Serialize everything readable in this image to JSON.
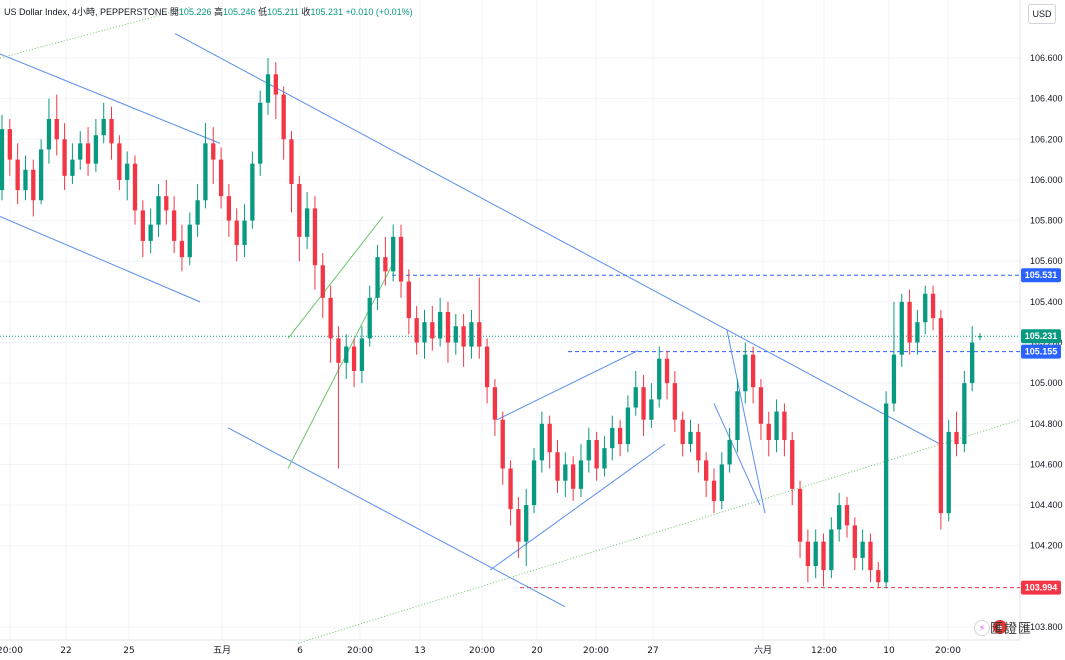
{
  "header": {
    "symbol": "US Dollar Index, 4小時, PEPPERSTONE",
    "open_label": "開",
    "open": "105.226",
    "high_label": "高",
    "high": "105.246",
    "low_label": "低",
    "low": "105.211",
    "close_label": "收",
    "close": "105.231",
    "change": "+0.010 (+0.01%)"
  },
  "currency_button": "USD",
  "watermark": "匯證匯",
  "colors": {
    "up": "#089981",
    "down": "#f23645",
    "trend_blue": "#5b8def",
    "trend_green": "#6cc46c",
    "grid": "#f0f3fa"
  },
  "chart_data": {
    "type": "candlestick",
    "y_axis": {
      "min": 103.8,
      "max": 106.8,
      "ticks": [
        "106.600",
        "106.400",
        "106.200",
        "106.000",
        "105.800",
        "105.600",
        "105.400",
        "105.200",
        "105.000",
        "104.800",
        "104.600",
        "104.400",
        "104.200",
        "103.800"
      ]
    },
    "x_axis": {
      "ticks": [
        "20:00",
        "22",
        "25",
        "五月",
        "6",
        "20:00",
        "13",
        "20:00",
        "20",
        "20:00",
        "27",
        "六月",
        "12:00",
        "10",
        "20:00"
      ]
    },
    "price_labels": [
      {
        "value": 105.531,
        "text": "105.531",
        "color": "#2962ff"
      },
      {
        "value": 105.231,
        "text": "105.231",
        "color": "#089981"
      },
      {
        "value": 105.155,
        "text": "105.155",
        "color": "#2962ff"
      },
      {
        "value": 103.994,
        "text": "103.994",
        "color": "#f23645"
      }
    ],
    "horizontal_lines": [
      {
        "value": 105.531,
        "style": "dashed",
        "color": "#2962ff"
      },
      {
        "value": 105.155,
        "style": "dashed",
        "color": "#2962ff"
      },
      {
        "value": 103.994,
        "style": "dashed",
        "color": "#f23645"
      },
      {
        "value": 105.231,
        "style": "dotted",
        "color": "#089981"
      }
    ],
    "candles": [
      [
        105.95,
        106.25,
        106.32,
        105.9
      ],
      [
        106.25,
        106.1,
        106.3,
        106.02
      ],
      [
        106.1,
        105.95,
        106.18,
        105.88
      ],
      [
        105.95,
        106.05,
        106.12,
        105.9
      ],
      [
        106.05,
        105.9,
        106.1,
        105.82
      ],
      [
        105.9,
        106.15,
        106.2,
        105.88
      ],
      [
        106.15,
        106.3,
        106.4,
        106.08
      ],
      [
        106.3,
        106.2,
        106.42,
        106.12
      ],
      [
        106.2,
        106.02,
        106.28,
        105.95
      ],
      [
        106.02,
        106.1,
        106.18,
        105.98
      ],
      [
        106.1,
        106.18,
        106.24,
        106.05
      ],
      [
        106.18,
        106.08,
        106.26,
        106.02
      ],
      [
        106.08,
        106.22,
        106.3,
        106.04
      ],
      [
        106.22,
        106.3,
        106.38,
        106.18
      ],
      [
        106.3,
        106.18,
        106.36,
        106.1
      ],
      [
        106.18,
        106.0,
        106.22,
        105.95
      ],
      [
        106.0,
        106.08,
        106.14,
        105.9
      ],
      [
        106.08,
        105.85,
        106.12,
        105.78
      ],
      [
        105.85,
        105.7,
        105.9,
        105.62
      ],
      [
        105.7,
        105.78,
        105.86,
        105.64
      ],
      [
        105.78,
        105.92,
        105.98,
        105.72
      ],
      [
        105.92,
        105.85,
        106.0,
        105.78
      ],
      [
        105.85,
        105.7,
        105.92,
        105.64
      ],
      [
        105.7,
        105.62,
        105.78,
        105.55
      ],
      [
        105.62,
        105.78,
        105.84,
        105.58
      ],
      [
        105.78,
        105.9,
        105.98,
        105.72
      ],
      [
        105.9,
        106.18,
        106.28,
        105.86
      ],
      [
        106.18,
        106.1,
        106.26,
        105.98
      ],
      [
        106.1,
        105.92,
        106.16,
        105.86
      ],
      [
        105.92,
        105.8,
        105.98,
        105.72
      ],
      [
        105.8,
        105.68,
        105.86,
        105.6
      ],
      [
        105.68,
        105.8,
        105.88,
        105.62
      ],
      [
        105.8,
        106.08,
        106.14,
        105.76
      ],
      [
        106.08,
        106.38,
        106.44,
        106.02
      ],
      [
        106.38,
        106.52,
        106.6,
        106.32
      ],
      [
        106.52,
        106.42,
        106.58,
        106.3
      ],
      [
        106.42,
        106.2,
        106.46,
        106.1
      ],
      [
        106.2,
        105.98,
        106.24,
        105.84
      ],
      [
        105.98,
        105.72,
        106.02,
        105.6
      ],
      [
        105.72,
        105.86,
        105.94,
        105.66
      ],
      [
        105.86,
        105.58,
        105.92,
        105.46
      ],
      [
        105.58,
        105.42,
        105.64,
        105.32
      ],
      [
        105.42,
        105.22,
        105.48,
        105.1
      ],
      [
        105.22,
        105.1,
        105.28,
        104.58
      ],
      [
        105.1,
        105.18,
        105.24,
        105.02
      ],
      [
        105.18,
        105.06,
        105.22,
        104.98
      ],
      [
        105.06,
        105.22,
        105.28,
        105.0
      ],
      [
        105.22,
        105.42,
        105.48,
        105.18
      ],
      [
        105.42,
        105.62,
        105.68,
        105.36
      ],
      [
        105.62,
        105.55,
        105.72,
        105.48
      ],
      [
        105.55,
        105.72,
        105.78,
        105.5
      ],
      [
        105.72,
        105.5,
        105.78,
        105.42
      ],
      [
        105.5,
        105.32,
        105.56,
        105.24
      ],
      [
        105.32,
        105.2,
        105.38,
        105.14
      ],
      [
        105.2,
        105.3,
        105.36,
        105.12
      ],
      [
        105.3,
        105.22,
        105.38,
        105.16
      ],
      [
        105.22,
        105.35,
        105.42,
        105.18
      ],
      [
        105.35,
        105.2,
        105.4,
        105.1
      ],
      [
        105.2,
        105.28,
        105.34,
        105.14
      ],
      [
        105.28,
        105.18,
        105.34,
        105.08
      ],
      [
        105.18,
        105.3,
        105.36,
        105.12
      ],
      [
        105.3,
        105.18,
        105.52,
        105.12
      ],
      [
        105.18,
        104.98,
        105.22,
        104.9
      ],
      [
        104.98,
        104.82,
        105.02,
        104.74
      ],
      [
        104.82,
        104.58,
        104.86,
        104.5
      ],
      [
        104.58,
        104.38,
        104.62,
        104.3
      ],
      [
        104.38,
        104.22,
        104.44,
        104.14
      ],
      [
        104.22,
        104.4,
        104.48,
        104.1
      ],
      [
        104.4,
        104.62,
        104.68,
        104.36
      ],
      [
        104.62,
        104.8,
        104.86,
        104.56
      ],
      [
        104.8,
        104.66,
        104.84,
        104.58
      ],
      [
        104.66,
        104.52,
        104.72,
        104.46
      ],
      [
        104.52,
        104.6,
        104.66,
        104.44
      ],
      [
        104.6,
        104.48,
        104.64,
        104.42
      ],
      [
        104.48,
        104.62,
        104.7,
        104.44
      ],
      [
        104.62,
        104.72,
        104.78,
        104.56
      ],
      [
        104.72,
        104.58,
        104.76,
        104.52
      ],
      [
        104.58,
        104.68,
        104.74,
        104.54
      ],
      [
        104.68,
        104.78,
        104.84,
        104.62
      ],
      [
        104.78,
        104.7,
        104.82,
        104.64
      ],
      [
        104.7,
        104.88,
        104.94,
        104.66
      ],
      [
        104.88,
        104.98,
        105.06,
        104.84
      ],
      [
        104.98,
        104.82,
        105.04,
        104.74
      ],
      [
        104.82,
        104.92,
        105.0,
        104.78
      ],
      [
        104.92,
        105.12,
        105.18,
        104.88
      ],
      [
        105.12,
        105.0,
        105.16,
        104.92
      ],
      [
        105.0,
        104.82,
        105.06,
        104.76
      ],
      [
        104.82,
        104.7,
        104.86,
        104.64
      ],
      [
        104.7,
        104.76,
        104.82,
        104.66
      ],
      [
        104.76,
        104.62,
        104.8,
        104.56
      ],
      [
        104.62,
        104.52,
        104.66,
        104.44
      ],
      [
        104.52,
        104.42,
        104.58,
        104.36
      ],
      [
        104.42,
        104.6,
        104.66,
        104.38
      ],
      [
        104.6,
        104.72,
        104.78,
        104.56
      ],
      [
        104.72,
        104.96,
        105.02,
        104.66
      ],
      [
        104.96,
        105.14,
        105.2,
        104.9
      ],
      [
        105.14,
        104.98,
        105.18,
        104.9
      ],
      [
        104.98,
        104.8,
        105.02,
        104.72
      ],
      [
        104.8,
        104.72,
        104.86,
        104.64
      ],
      [
        104.72,
        104.86,
        104.92,
        104.66
      ],
      [
        104.86,
        104.72,
        104.9,
        104.64
      ],
      [
        104.72,
        104.48,
        104.76,
        104.4
      ],
      [
        104.48,
        104.22,
        104.52,
        104.14
      ],
      [
        104.22,
        104.1,
        104.28,
        104.02
      ],
      [
        104.1,
        104.22,
        104.28,
        104.04
      ],
      [
        104.22,
        104.08,
        104.26,
        104.0
      ],
      [
        104.08,
        104.28,
        104.34,
        104.04
      ],
      [
        104.28,
        104.4,
        104.46,
        104.22
      ],
      [
        104.4,
        104.3,
        104.44,
        104.24
      ],
      [
        104.3,
        104.14,
        104.34,
        104.08
      ],
      [
        104.14,
        104.22,
        104.28,
        104.08
      ],
      [
        104.22,
        104.08,
        104.26,
        104.02
      ],
      [
        104.08,
        104.02,
        104.12,
        103.99
      ],
      [
        104.02,
        104.9,
        104.96,
        103.99
      ],
      [
        104.9,
        105.14,
        105.4,
        104.86
      ],
      [
        105.14,
        105.4,
        105.44,
        105.08
      ],
      [
        105.4,
        105.2,
        105.46,
        105.14
      ],
      [
        105.2,
        105.3,
        105.36,
        105.14
      ],
      [
        105.3,
        105.44,
        105.48,
        105.24
      ],
      [
        105.44,
        105.32,
        105.48,
        105.26
      ],
      [
        105.32,
        104.36,
        105.36,
        104.28
      ],
      [
        104.36,
        104.76,
        104.82,
        104.32
      ],
      [
        104.76,
        104.7,
        104.86,
        104.64
      ],
      [
        104.7,
        105.0,
        105.06,
        104.66
      ],
      [
        105.0,
        105.2,
        105.28,
        104.96
      ],
      [
        105.226,
        105.231,
        105.246,
        105.211
      ]
    ],
    "trend_lines": [
      {
        "from": [
          0,
          106.62
        ],
        "to": [
          220,
          106.18
        ],
        "color": "#5b8def"
      },
      {
        "from": [
          0,
          105.82
        ],
        "to": [
          200,
          105.4
        ],
        "color": "#5b8def"
      },
      {
        "from": [
          175,
          106.72
        ],
        "to": [
          940,
          104.7
        ],
        "color": "#5b8def"
      },
      {
        "from": [
          228,
          104.78
        ],
        "to": [
          565,
          103.9
        ],
        "color": "#5b8def"
      },
      {
        "from": [
          288,
          105.22
        ],
        "to": [
          383,
          105.82
        ],
        "color": "#6cc46c"
      },
      {
        "from": [
          288,
          104.58
        ],
        "to": [
          392,
          105.58
        ],
        "color": "#6cc46c"
      },
      {
        "from": [
          497,
          104.82
        ],
        "to": [
          638,
          105.16
        ],
        "color": "#5b8def"
      },
      {
        "from": [
          490,
          104.08
        ],
        "to": [
          665,
          104.7
        ],
        "color": "#5b8def"
      },
      {
        "from": [
          727,
          105.26
        ],
        "to": [
          765,
          104.36
        ],
        "color": "#5b8def"
      },
      {
        "from": [
          714,
          104.9
        ],
        "to": [
          760,
          104.4
        ],
        "color": "#5b8def"
      }
    ],
    "dotted_lines": [
      {
        "from": [
          0,
          106.6
        ],
        "to": [
          190,
          106.85
        ],
        "color": "#6cc46c"
      },
      {
        "from": [
          298,
          103.72
        ],
        "to": [
          1020,
          104.82
        ],
        "color": "#6cc46c"
      }
    ]
  }
}
